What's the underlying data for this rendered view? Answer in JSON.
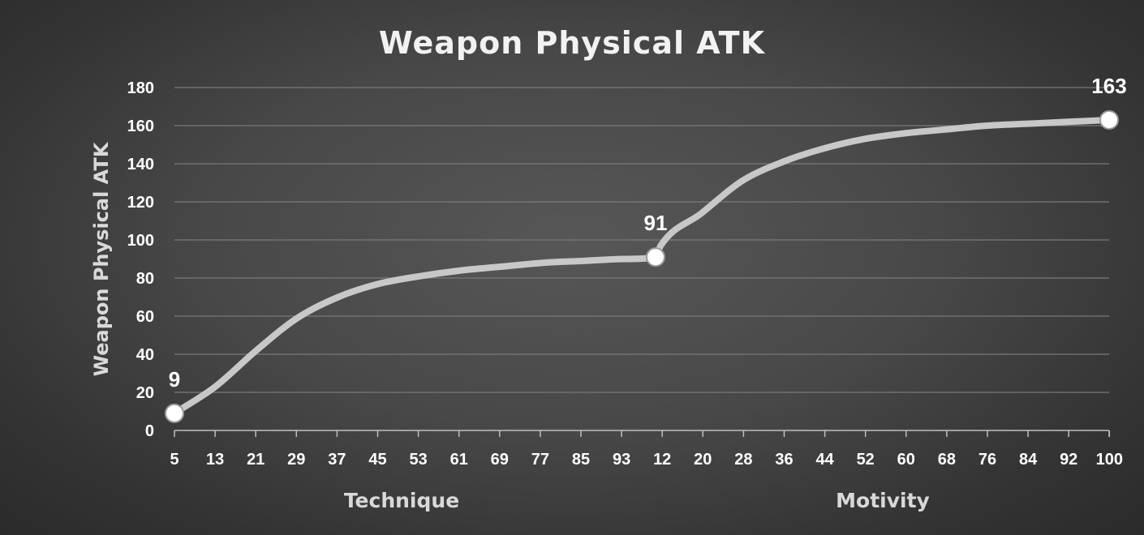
{
  "chart_data": {
    "type": "line",
    "title": "Weapon Physical ATK",
    "ylabel": "Weapon Physical ATK",
    "ylim": [
      0,
      180
    ],
    "y_ticks": [
      0,
      20,
      40,
      60,
      80,
      100,
      120,
      140,
      160,
      180
    ],
    "grid": true,
    "legend": "none",
    "line_color": "#c8c8c8",
    "marker_color": "#ffffff",
    "x_sections": [
      {
        "label": "Technique",
        "tick_labels": [
          "5",
          "13",
          "21",
          "29",
          "37",
          "45",
          "53",
          "61",
          "69",
          "77",
          "85",
          "93"
        ]
      },
      {
        "label": "Motivity",
        "tick_labels": [
          "12",
          "20",
          "28",
          "36",
          "44",
          "52",
          "60",
          "68",
          "76",
          "84",
          "92",
          "100"
        ]
      }
    ],
    "series": [
      {
        "points": [
          {
            "stat": "Technique",
            "x": 5,
            "y": 9
          },
          {
            "stat": "Technique",
            "x": 13,
            "y": 23
          },
          {
            "stat": "Technique",
            "x": 21,
            "y": 42
          },
          {
            "stat": "Technique",
            "x": 29,
            "y": 59
          },
          {
            "stat": "Technique",
            "x": 37,
            "y": 70
          },
          {
            "stat": "Technique",
            "x": 45,
            "y": 77
          },
          {
            "stat": "Technique",
            "x": 53,
            "y": 81
          },
          {
            "stat": "Technique",
            "x": 61,
            "y": 84
          },
          {
            "stat": "Technique",
            "x": 69,
            "y": 86
          },
          {
            "stat": "Technique",
            "x": 77,
            "y": 88
          },
          {
            "stat": "Technique",
            "x": 85,
            "y": 89
          },
          {
            "stat": "Technique",
            "x": 93,
            "y": 90
          },
          {
            "stat": "Technique",
            "x": 99,
            "y": 91
          },
          {
            "stat": "Motivity",
            "x": 12,
            "y": 97
          },
          {
            "stat": "Motivity",
            "x": 20,
            "y": 114
          },
          {
            "stat": "Motivity",
            "x": 28,
            "y": 131
          },
          {
            "stat": "Motivity",
            "x": 36,
            "y": 141
          },
          {
            "stat": "Motivity",
            "x": 44,
            "y": 148
          },
          {
            "stat": "Motivity",
            "x": 52,
            "y": 153
          },
          {
            "stat": "Motivity",
            "x": 60,
            "y": 156
          },
          {
            "stat": "Motivity",
            "x": 68,
            "y": 158
          },
          {
            "stat": "Motivity",
            "x": 76,
            "y": 160
          },
          {
            "stat": "Motivity",
            "x": 84,
            "y": 161
          },
          {
            "stat": "Motivity",
            "x": 92,
            "y": 162
          },
          {
            "stat": "Motivity",
            "x": 100,
            "y": 163
          }
        ]
      }
    ],
    "data_labels": [
      {
        "stat": "Technique",
        "x": 5,
        "y": 9,
        "text": "9"
      },
      {
        "stat": "Technique",
        "x": 99,
        "y": 91,
        "text": "91"
      },
      {
        "stat": "Motivity",
        "x": 100,
        "y": 163,
        "text": "163"
      }
    ]
  }
}
